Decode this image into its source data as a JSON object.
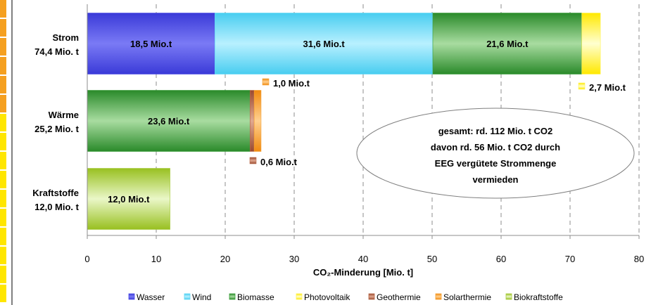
{
  "chart_data": {
    "type": "bar",
    "orientation": "horizontal",
    "stacked": true,
    "xlabel": "CO₂-Minderung  [Mio. t]",
    "xlim": [
      0,
      80
    ],
    "xticks": [
      0,
      10,
      20,
      30,
      40,
      50,
      60,
      70,
      80
    ],
    "grid": "vertical-dashed",
    "legend_position": "bottom",
    "categories": [
      {
        "name": "Strom",
        "total": "74,4 Mio. t"
      },
      {
        "name": "Wärme",
        "total": "25,2 Mio. t"
      },
      {
        "name": "Kraftstoffe",
        "total": "12,0 Mio. t"
      }
    ],
    "series": [
      {
        "name": "Wasser",
        "color": "#4f4fe8",
        "values": [
          18.5,
          0,
          0
        ],
        "labels": [
          "18,5 Mio.t",
          "",
          ""
        ]
      },
      {
        "name": "Wind",
        "color": "#5fd8f5",
        "values": [
          31.6,
          0,
          0
        ],
        "labels": [
          "31,6 Mio.t",
          "",
          ""
        ]
      },
      {
        "name": "Biomasse",
        "color": "#3a9e3a",
        "values": [
          21.6,
          23.6,
          0
        ],
        "labels": [
          "21,6 Mio.t",
          "23,6 Mio.t",
          ""
        ]
      },
      {
        "name": "Photovoltaik",
        "color": "#fff35a",
        "values": [
          2.7,
          0,
          0
        ],
        "labels": [
          "",
          "",
          ""
        ]
      },
      {
        "name": "Geothermie",
        "color": "#b86a4a",
        "values": [
          0,
          0.6,
          0
        ],
        "labels": [
          "",
          "",
          ""
        ]
      },
      {
        "name": "Solarthermie",
        "color": "#f5a030",
        "values": [
          0,
          1.0,
          0
        ],
        "labels": [
          "",
          "",
          ""
        ]
      },
      {
        "name": "Biokraftstoffe",
        "color": "#a8cc40",
        "values": [
          0,
          0,
          12.0
        ],
        "labels": [
          "",
          "",
          "12,0 Mio.t"
        ]
      }
    ],
    "callouts": [
      {
        "text": "1,0 Mio.t",
        "series": "Solarthermie"
      },
      {
        "text": "2,7 Mio.t",
        "series": "Photovoltaik"
      },
      {
        "text": "0,6 Mio.t",
        "series": "Geothermie"
      }
    ],
    "annotation": {
      "lines": [
        "gesamt: rd. 112 Mio. t CO2",
        "davon rd. 56 Mio. t  CO2 durch",
        "EEG vergütete Strommenge",
        "vermieden"
      ]
    }
  }
}
